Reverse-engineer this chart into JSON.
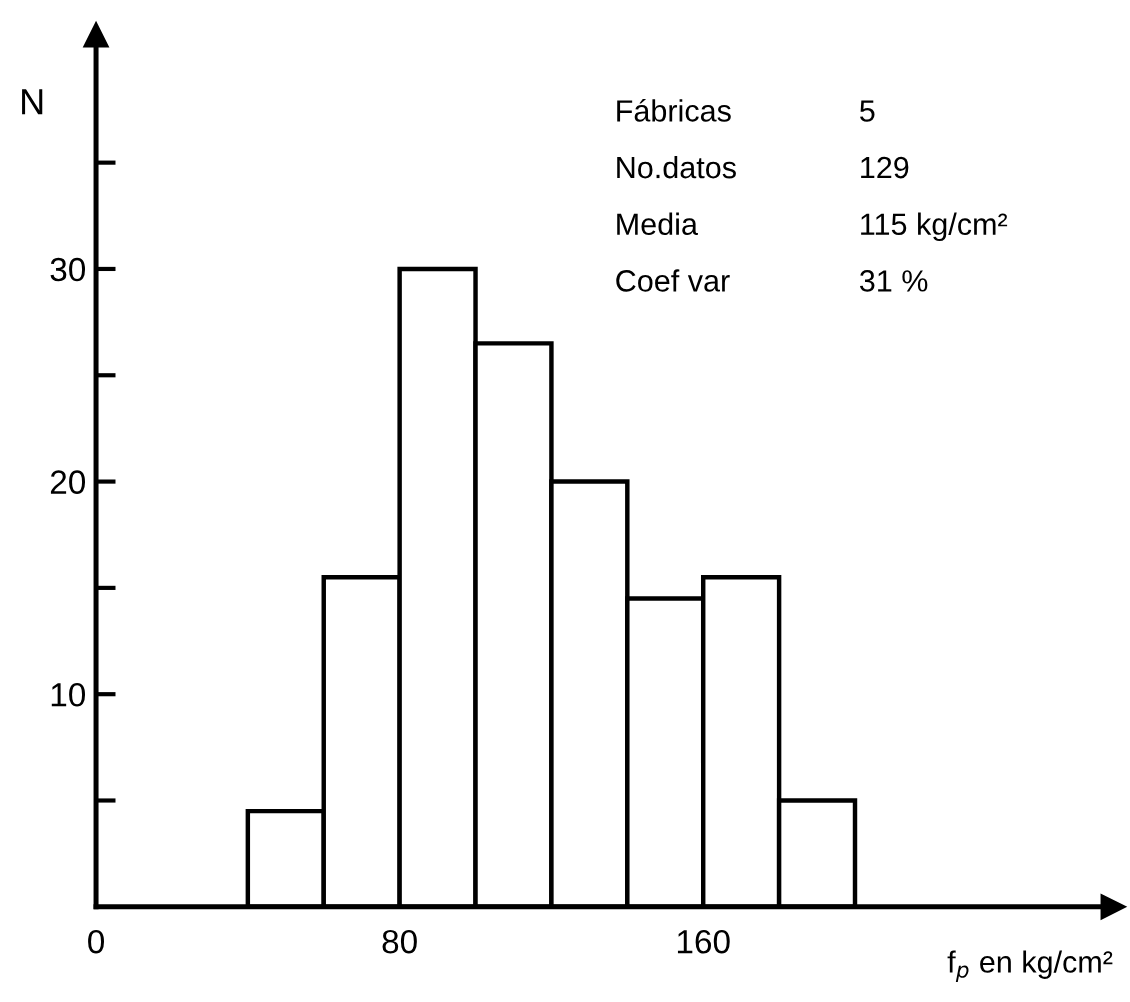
{
  "chart_data": {
    "type": "histogram",
    "bins": [
      40,
      60,
      80,
      100,
      120,
      140,
      160,
      180,
      200
    ],
    "values": [
      4.5,
      15.5,
      30,
      26.5,
      20,
      14.5,
      15.5,
      5
    ],
    "color": "#ffffff",
    "xlabel": "f$_{p}$ en kg/cm²",
    "ylabel": "N",
    "xlim": [
      0,
      268
    ],
    "xticks": [
      0,
      80,
      160
    ],
    "ylim": [
      0,
      41
    ],
    "yticks": [
      {
        "value": 5,
        "label": null
      },
      10,
      {
        "value": 15,
        "label": null
      },
      20,
      {
        "value": 25,
        "label": null
      },
      30,
      {
        "value": 35,
        "label": null
      }
    ],
    "annotations": [
      "Fábricas",
      "5",
      "No.datos",
      "129",
      "Media",
      "115 kg/cm²",
      "Coef var",
      "31 %"
    ],
    "grid": false,
    "legend": false
  }
}
